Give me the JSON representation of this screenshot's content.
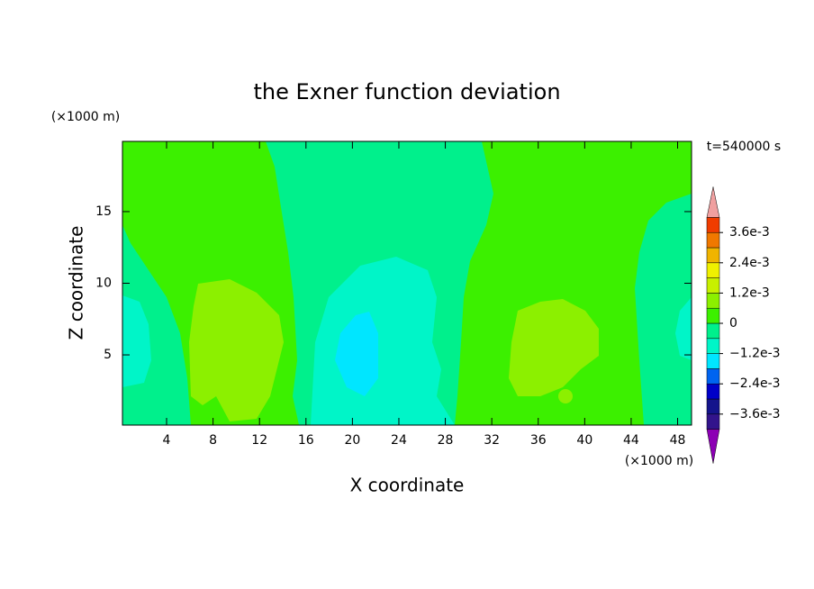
{
  "chart_data": {
    "type": "contour",
    "title": "the Exner function deviation",
    "x_label": "X coordinate",
    "y_label": "Z coordinate",
    "x_unit": "(×1000 m)",
    "y_unit": "(×1000 m)",
    "time_label": "t=540000 s",
    "xlim": [
      0.2,
      49.2
    ],
    "ylim": [
      0.1,
      19.9
    ],
    "xticks": [
      4,
      8,
      12,
      16,
      20,
      24,
      28,
      32,
      36,
      40,
      44,
      48
    ],
    "yticks": [
      5,
      10,
      15
    ],
    "levels": [
      -0.0042,
      -0.0036,
      -0.003,
      -0.0024,
      -0.0018,
      -0.0012,
      -0.0006,
      0,
      0.0006,
      0.0012,
      0.0018,
      0.0024,
      0.003,
      0.0036,
      0.0042
    ],
    "colors": [
      "#32148c",
      "#14148c",
      "#0000c8",
      "#0064f0",
      "#00e6ff",
      "#00f5c8",
      "#00f08c",
      "#3cf000",
      "#8cf000",
      "#c8f000",
      "#f0f000",
      "#f0b400",
      "#f07800",
      "#f03c00"
    ],
    "under_color": "#8c00b4",
    "over_color": "#f0a0a0",
    "colorbar_ticks": [
      {
        "value": 0.0036,
        "label": "3.6e-3"
      },
      {
        "value": 0.0024,
        "label": "2.4e-3"
      },
      {
        "value": 0.0012,
        "label": "1.2e-3"
      },
      0,
      {
        "value": -0.0012,
        "label": "−1.2e-3"
      },
      {
        "value": -0.0024,
        "label": "−2.4e-3"
      },
      {
        "value": -0.0036,
        "label": "−3.6e-3"
      }
    ]
  }
}
